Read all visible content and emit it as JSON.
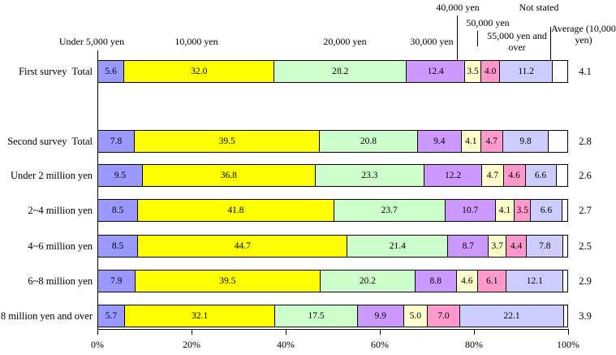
{
  "chart_data": {
    "type": "bar",
    "orientation": "horizontal",
    "stacked": true,
    "unit": "percent",
    "title": "",
    "xlabel": "",
    "ylabel": "",
    "x_range": [
      0,
      100
    ],
    "x_ticks": [
      "0%",
      "20%",
      "40%",
      "60%",
      "80%",
      "100%"
    ],
    "legend_position": "top-callout-labels",
    "segment_labels": [
      "Under 5,000 yen",
      "10,000 yen",
      "20,000 yen",
      "30,000 yen",
      "40,000 yen",
      "50,000 yen",
      "55,000 yen and over",
      "Not stated"
    ],
    "segment_colors": [
      "#9999FF",
      "#FFFF00",
      "#CCFFCC",
      "#CC99FF",
      "#FFFFCC",
      "#FF99CC",
      "#CCCCFF",
      "#FFFFFF"
    ],
    "average_header": "Average (10,000 yen)",
    "note": "Not stated segment width equals 100 minus sum of labeled values; it carries no printed value",
    "rows": [
      {
        "label": "First survey  Total",
        "values": [
          5.6,
          32.0,
          28.2,
          12.4,
          3.5,
          4.0,
          11.2
        ],
        "average": 4.1
      },
      {
        "label": "Second survey  Total",
        "values": [
          7.8,
          39.5,
          20.8,
          9.4,
          4.1,
          4.7,
          9.8
        ],
        "average": 2.8
      },
      {
        "label": "Under 2 million yen",
        "values": [
          9.5,
          36.8,
          23.3,
          12.2,
          4.7,
          4.6,
          6.6
        ],
        "average": 2.6
      },
      {
        "label": "2~4 million yen",
        "values": [
          8.5,
          41.8,
          23.7,
          10.7,
          4.1,
          3.5,
          6.6
        ],
        "average": 2.7
      },
      {
        "label": "4~6 million yen",
        "values": [
          8.5,
          44.7,
          21.4,
          8.7,
          3.7,
          4.4,
          7.8
        ],
        "average": 2.5
      },
      {
        "label": "6~8 million yen",
        "values": [
          7.9,
          39.5,
          20.2,
          8.8,
          4.6,
          6.1,
          12.1
        ],
        "average": 2.9
      },
      {
        "label": "8 million yen and over",
        "values": [
          5.7,
          32.1,
          17.5,
          9.9,
          5.0,
          7.0,
          22.1
        ],
        "average": 3.9
      }
    ]
  }
}
